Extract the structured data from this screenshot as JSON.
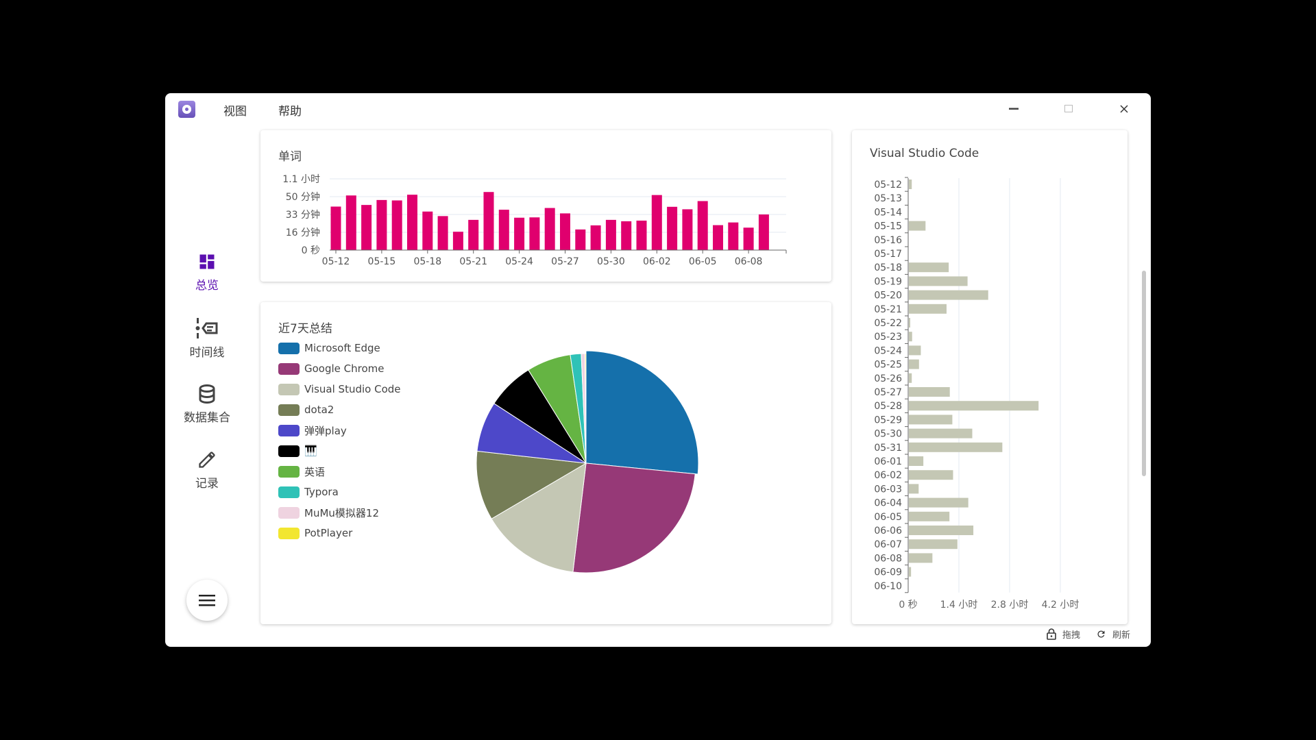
{
  "window": {
    "menu": [
      "视图",
      "帮助"
    ]
  },
  "sidebar": {
    "items": [
      {
        "label": "总览",
        "icon": "dashboard-icon",
        "active": true
      },
      {
        "label": "时间线",
        "icon": "timeline-icon"
      },
      {
        "label": "数据集合",
        "icon": "database-icon"
      },
      {
        "label": "记录",
        "icon": "pencil-icon"
      }
    ],
    "active_color": "#5b0fb0"
  },
  "footer": {
    "drag": "拖拽",
    "refresh": "刷新"
  },
  "chart_data": [
    {
      "type": "bar",
      "title": "单词",
      "color": "#e0006e",
      "ylabel": "",
      "xlabel": "",
      "yticks": [
        "0 秒",
        "16 分钟",
        "33 分钟",
        "50 分钟",
        "1.1 小时"
      ],
      "ytick_values_min": [
        0,
        16.5,
        33,
        49.5,
        66
      ],
      "ylim_min": [
        0,
        66
      ],
      "xticks": [
        "05-12",
        "05-15",
        "05-18",
        "05-21",
        "05-24",
        "05-27",
        "05-30",
        "06-02",
        "06-05",
        "06-08"
      ],
      "categories": [
        "05-12",
        "05-13",
        "05-14",
        "05-15",
        "05-16",
        "05-17",
        "05-18",
        "05-19",
        "05-20",
        "05-21",
        "05-22",
        "05-23",
        "05-24",
        "05-25",
        "05-26",
        "05-27",
        "05-28",
        "05-29",
        "05-30",
        "05-31",
        "06-01",
        "06-02",
        "06-03",
        "06-04",
        "06-05",
        "06-06",
        "06-07",
        "06-08",
        "06-09"
      ],
      "values_min": [
        40.3,
        50.6,
        41.8,
        46.4,
        46,
        51.3,
        35.7,
        31.5,
        17,
        28,
        53.8,
        37.4,
        30,
        30.3,
        39,
        34,
        19.1,
        22.9,
        28,
        26.7,
        27.3,
        51,
        40.1,
        37.8,
        45.4,
        23.1,
        25.6,
        20.8,
        33
      ],
      "grid": true
    },
    {
      "type": "pie",
      "title": "近7天总结",
      "legend": "left",
      "slices": [
        {
          "name": "Microsoft Edge",
          "value": 26.5,
          "color": "#1570ab"
        },
        {
          "name": "Google Chrome",
          "value": 25.3,
          "color": "#963977"
        },
        {
          "name": "Visual Studio Code",
          "value": 14.6,
          "color": "#c4c7b4"
        },
        {
          "name": "dota2",
          "value": 10.2,
          "color": "#757d56"
        },
        {
          "name": "弹弹play",
          "value": 7.4,
          "color": "#4d48c9"
        },
        {
          "name": "🎹",
          "value": 7.0,
          "color": "#000000"
        },
        {
          "name": "英语",
          "value": 6.5,
          "color": "#65b443"
        },
        {
          "name": "Typora",
          "value": 1.6,
          "color": "#2fc2b7"
        },
        {
          "name": "MuMu模拟器12",
          "value": 0.55,
          "color": "#efd3e0"
        },
        {
          "name": "PotPlayer",
          "value": 0.15,
          "color": "#f2e630"
        }
      ]
    },
    {
      "type": "bar",
      "orientation": "horizontal",
      "title": "Visual Studio Code",
      "color": "#c4c7b4",
      "xticks": [
        "0 秒",
        "1.4 小时",
        "2.8 小时",
        "4.2 小时"
      ],
      "xtick_values_h": [
        0,
        1.4,
        2.8,
        4.2
      ],
      "xlim_h": [
        0,
        5.6
      ],
      "categories": [
        "05-12",
        "05-13",
        "05-14",
        "05-15",
        "05-16",
        "05-17",
        "05-18",
        "05-19",
        "05-20",
        "05-21",
        "05-22",
        "05-23",
        "05-24",
        "05-25",
        "05-26",
        "05-27",
        "05-28",
        "05-29",
        "05-30",
        "05-31",
        "06-01",
        "06-02",
        "06-03",
        "06-04",
        "06-05",
        "06-06",
        "06-07",
        "06-08",
        "06-09",
        "06-10"
      ],
      "values_h": [
        0.08,
        0,
        0,
        0.46,
        0,
        0,
        1.1,
        1.62,
        2.19,
        1.04,
        0.02,
        0.09,
        0.33,
        0.28,
        0.08,
        1.13,
        3.58,
        1.2,
        1.75,
        2.58,
        0.4,
        1.22,
        0.27,
        1.64,
        1.12,
        1.78,
        1.34,
        0.65,
        0.06,
        0
      ],
      "grid": true
    }
  ]
}
